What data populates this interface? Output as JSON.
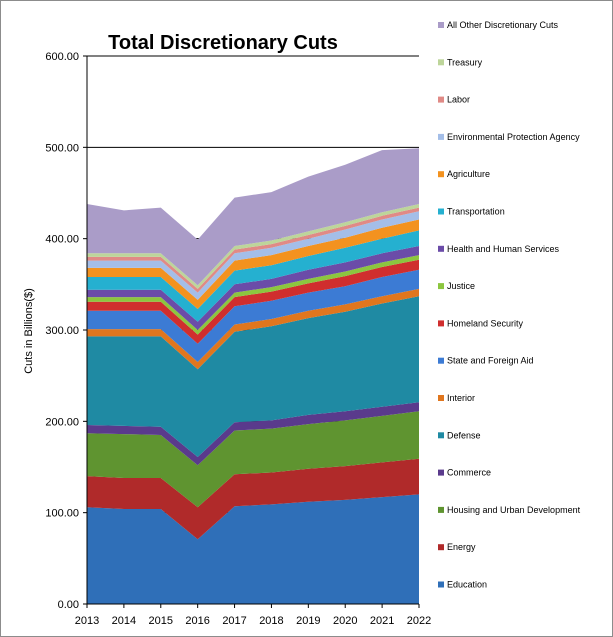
{
  "chart_data": {
    "type": "area",
    "stacked": true,
    "title": "Total Discretionary Cuts",
    "xlabel": "",
    "ylabel": "Cuts in Billions($)",
    "ylim": [
      0,
      600
    ],
    "y_ticks": [
      "0.00",
      "100.00",
      "200.00",
      "300.00",
      "400.00",
      "500.00",
      "600.00"
    ],
    "x": [
      "2013",
      "2014",
      "2015",
      "2016",
      "2017",
      "2018",
      "2019",
      "2020",
      "2021",
      "2022"
    ],
    "grid": "horizontal",
    "legend_position": "right",
    "series": [
      {
        "name": "Education",
        "color": "#2f6fb8",
        "values": [
          106,
          104,
          104,
          71,
          107,
          109,
          112,
          114,
          117,
          120
        ]
      },
      {
        "name": "Energy",
        "color": "#b02a2a",
        "values": [
          34,
          34,
          34,
          35,
          35,
          35,
          36,
          37,
          38,
          39
        ]
      },
      {
        "name": "Housing and Urban Development",
        "color": "#5f9430",
        "values": [
          47,
          48,
          47,
          46,
          48,
          48,
          49,
          50,
          51,
          52
        ]
      },
      {
        "name": "Commerce",
        "color": "#5a3a8c",
        "values": [
          9,
          9,
          9,
          9,
          9,
          9,
          10,
          10,
          10,
          10
        ]
      },
      {
        "name": "Defense",
        "color": "#1f8aa3",
        "values": [
          97,
          98,
          99,
          96,
          99,
          103,
          106,
          109,
          113,
          116
        ]
      },
      {
        "name": "Interior",
        "color": "#e0761e",
        "values": [
          8,
          8,
          8,
          8,
          8,
          8,
          8,
          8,
          8,
          8
        ]
      },
      {
        "name": "State and Foreign Aid",
        "color": "#3c7bd4",
        "values": [
          20,
          20,
          20,
          20,
          20,
          20,
          20,
          20,
          21,
          21
        ]
      },
      {
        "name": "Homeland Security",
        "color": "#d02e2e",
        "values": [
          10,
          10,
          10,
          10,
          10,
          10,
          10,
          11,
          11,
          11
        ]
      },
      {
        "name": "Justice",
        "color": "#8cc63f",
        "values": [
          5,
          5,
          5,
          5,
          5,
          5,
          5,
          5,
          5,
          5
        ]
      },
      {
        "name": "Health and Human Services",
        "color": "#6b4ca8",
        "values": [
          8,
          8,
          8,
          9,
          9,
          9,
          10,
          10,
          10,
          10
        ]
      },
      {
        "name": "Transportation",
        "color": "#25b0d0",
        "values": [
          14,
          14,
          14,
          14,
          15,
          15,
          15,
          16,
          16,
          17
        ]
      },
      {
        "name": "Agriculture",
        "color": "#f3921f",
        "values": [
          10,
          10,
          10,
          10,
          11,
          11,
          11,
          11,
          12,
          12
        ]
      },
      {
        "name": "Environmental Protection Agency",
        "color": "#a4bee8",
        "values": [
          8,
          8,
          8,
          8,
          8,
          8,
          8,
          9,
          9,
          9
        ]
      },
      {
        "name": "Labor",
        "color": "#e08a86",
        "values": [
          4,
          4,
          4,
          4,
          4,
          4,
          4,
          4,
          4,
          4
        ]
      },
      {
        "name": "Treasury",
        "color": "#bdd59a",
        "values": [
          4,
          4,
          4,
          4,
          4,
          4,
          4,
          4,
          4,
          4
        ]
      },
      {
        "name": "All Other Discretionary Cuts",
        "color": "#aa9cc8",
        "values": [
          54,
          47,
          50,
          50,
          53,
          53,
          60,
          63,
          68,
          61
        ]
      }
    ]
  }
}
